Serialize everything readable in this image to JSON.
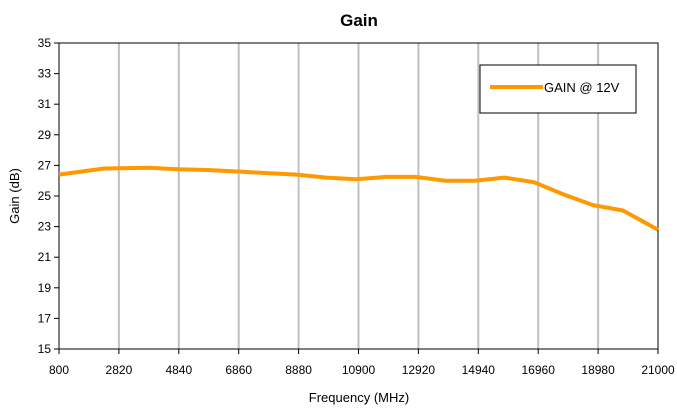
{
  "chart_data": {
    "type": "line",
    "title": "Gain",
    "xlabel": "Frequency (MHz)",
    "ylabel": "Gain (dB)",
    "xlim": [
      800,
      21000
    ],
    "ylim": [
      15,
      35
    ],
    "x_ticks": [
      800,
      2820,
      4840,
      6860,
      8880,
      10900,
      12920,
      14940,
      16960,
      18980,
      21000
    ],
    "y_ticks": [
      15,
      17,
      19,
      21,
      23,
      25,
      27,
      29,
      31,
      33,
      35
    ],
    "grid": {
      "x": true,
      "y": false
    },
    "legend_position": "top-right",
    "series_color": "#FF9900",
    "series": [
      {
        "name": "GAIN @ 12V",
        "x": [
          800,
          2320,
          3820,
          4820,
          5820,
          6820,
          7820,
          8820,
          9820,
          10820,
          11820,
          12820,
          13820,
          14820,
          15820,
          16820,
          17820,
          18820,
          19820,
          21000
        ],
        "y": [
          26.4,
          26.8,
          26.85,
          26.75,
          26.7,
          26.6,
          26.5,
          26.4,
          26.2,
          26.1,
          26.25,
          26.25,
          26.0,
          26.0,
          26.2,
          25.9,
          25.1,
          24.4,
          24.05,
          22.8
        ]
      }
    ]
  }
}
